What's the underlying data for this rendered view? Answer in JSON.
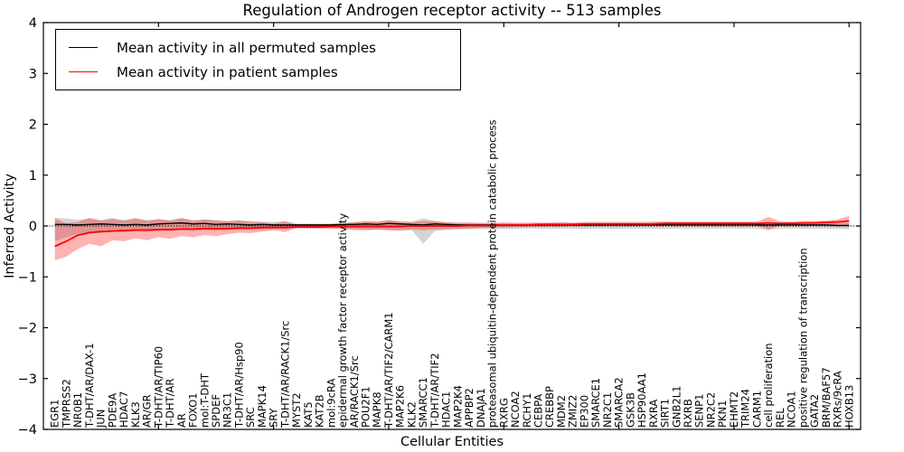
{
  "figure": {
    "title": "Regulation of Androgen receptor activity -- 513 samples",
    "xlabel": "Cellular Entities",
    "ylabel": "Inferred Activity"
  },
  "chart_data": {
    "type": "line",
    "title": "Regulation of Androgen receptor activity -- 513 samples",
    "xlabel": "Cellular Entities",
    "ylabel": "Inferred Activity",
    "ylim": [
      -4,
      4
    ],
    "yticks": [
      4,
      3,
      2,
      1,
      0,
      -1,
      -2,
      -3,
      -4
    ],
    "grid": false,
    "legend_position": "upper left",
    "zero_reference_line": true,
    "categories": [
      "EGR1",
      "TMPRSS2",
      "NR0B1",
      "T-DHT/AR/DAX-1",
      "JUN",
      "PDE9A",
      "HDAC7",
      "KLK3",
      "AR/GR",
      "T-DHT/AR/TIP60",
      "T-DHT/AR",
      "AR",
      "FOXO1",
      "mol:T-DHT",
      "SPDEF",
      "NR3C1",
      "T-DHT/AR/Hsp90",
      "SRC",
      "MAPK14",
      "SRY",
      "T-DHT/AR/RACK1/Src",
      "MYST2",
      "KAT5",
      "KAT2B",
      "mol:9cRA",
      "epidermal growth factor receptor activity",
      "AR/RACK1/Src",
      "POU2F1",
      "MAPK8",
      "T-DHT/AR/TIF2/CARM1",
      "MAP2K6",
      "KLK2",
      "SMARCC1",
      "T-DHT/AR/TIF2",
      "HDAC1",
      "MAP2K4",
      "APPBP2",
      "DNAJA1",
      "proteasomal ubiquitin-dependent protein catabolic process",
      "RXRG",
      "NCOA2",
      "RCHY1",
      "CEBPA",
      "CREBBP",
      "MDM2",
      "ZMIZ2",
      "EP300",
      "SMARCE1",
      "NR2C1",
      "SMARCA2",
      "GSK3B",
      "HSP90AA1",
      "RXRA",
      "SIRT1",
      "GNB2L1",
      "RXRB",
      "SENP1",
      "NR2C2",
      "PKN1",
      "EHMT2",
      "TRIM24",
      "CARM1",
      "cell proliferation",
      "REL",
      "NCOA1",
      "positive regulation of transcription",
      "GATA2",
      "BRM/BAF57",
      "RXRs/9cRA",
      "HOXB13"
    ],
    "series": [
      {
        "key": "permuted",
        "name": "Mean activity in all permuted samples",
        "color": "#000000",
        "band_color": "rgba(120,120,120,0.32)",
        "values": [
          0.03,
          0.03,
          0.02,
          0.03,
          0.04,
          0.03,
          0.02,
          0.03,
          0.02,
          0.04,
          0.05,
          0.06,
          0.04,
          0.05,
          0.03,
          0.04,
          0.03,
          0.02,
          0.03,
          0.02,
          0.02,
          0.02,
          0.02,
          0.02,
          0.02,
          0.03,
          0.03,
          0.04,
          0.03,
          0.05,
          0.04,
          0.03,
          0.02,
          0.04,
          0.03,
          0.02,
          0.02,
          0.02,
          0.02,
          0.02,
          0.02,
          0.02,
          0.02,
          0.02,
          0.02,
          0.02,
          0.02,
          0.02,
          0.02,
          0.02,
          0.02,
          0.02,
          0.02,
          0.02,
          0.02,
          0.02,
          0.02,
          0.02,
          0.02,
          0.02,
          0.02,
          0.02,
          0.02,
          0.02,
          0.02,
          0.02,
          0.02,
          0.02,
          0.01,
          0.01
        ],
        "band_upper": [
          0.16,
          0.15,
          0.12,
          0.15,
          0.12,
          0.16,
          0.12,
          0.14,
          0.12,
          0.13,
          0.12,
          0.15,
          0.12,
          0.13,
          0.12,
          0.1,
          0.11,
          0.1,
          0.09,
          0.08,
          0.08,
          0.05,
          0.05,
          0.05,
          0.05,
          0.06,
          0.08,
          0.1,
          0.09,
          0.12,
          0.1,
          0.09,
          0.15,
          0.1,
          0.08,
          0.07,
          0.06,
          0.06,
          0.06,
          0.06,
          0.06,
          0.05,
          0.05,
          0.06,
          0.05,
          0.05,
          0.06,
          0.05,
          0.05,
          0.06,
          0.05,
          0.05,
          0.05,
          0.06,
          0.05,
          0.05,
          0.05,
          0.05,
          0.05,
          0.05,
          0.05,
          0.05,
          0.06,
          0.05,
          0.05,
          0.05,
          0.05,
          0.05,
          0.06,
          0.06
        ],
        "band_lower": [
          -0.3,
          -0.22,
          -0.15,
          -0.12,
          -0.14,
          -0.1,
          -0.12,
          -0.1,
          -0.12,
          -0.1,
          -0.1,
          -0.08,
          -0.1,
          -0.08,
          -0.09,
          -0.08,
          -0.07,
          -0.08,
          -0.07,
          -0.06,
          -0.06,
          -0.04,
          -0.04,
          -0.04,
          -0.04,
          -0.05,
          -0.06,
          -0.08,
          -0.07,
          -0.08,
          -0.1,
          -0.08,
          -0.35,
          -0.1,
          -0.08,
          -0.07,
          -0.06,
          -0.06,
          -0.06,
          -0.06,
          -0.06,
          -0.05,
          -0.05,
          -0.06,
          -0.05,
          -0.05,
          -0.06,
          -0.05,
          -0.05,
          -0.06,
          -0.05,
          -0.05,
          -0.05,
          -0.06,
          -0.05,
          -0.05,
          -0.05,
          -0.05,
          -0.05,
          -0.05,
          -0.05,
          -0.05,
          -0.08,
          -0.05,
          -0.05,
          -0.05,
          -0.05,
          -0.05,
          -0.06,
          -0.06
        ]
      },
      {
        "key": "patient",
        "name": "Mean activity in patient samples",
        "color": "#ff0000",
        "band_color": "rgba(255,0,0,0.30)",
        "values": [
          -0.4,
          -0.3,
          -0.18,
          -0.13,
          -0.11,
          -0.1,
          -0.09,
          -0.08,
          -0.08,
          -0.07,
          -0.07,
          -0.06,
          -0.06,
          -0.05,
          -0.05,
          -0.05,
          -0.04,
          -0.04,
          -0.03,
          -0.03,
          -0.03,
          -0.02,
          -0.02,
          -0.02,
          -0.01,
          -0.01,
          -0.01,
          -0.01,
          -0.01,
          -0.01,
          -0.01,
          0.0,
          0.0,
          0.0,
          0.0,
          0.0,
          0.01,
          0.01,
          0.01,
          0.02,
          0.02,
          0.02,
          0.03,
          0.03,
          0.03,
          0.03,
          0.04,
          0.04,
          0.04,
          0.04,
          0.04,
          0.04,
          0.04,
          0.05,
          0.05,
          0.05,
          0.05,
          0.05,
          0.05,
          0.05,
          0.05,
          0.05,
          0.06,
          0.05,
          0.05,
          0.06,
          0.06,
          0.07,
          0.08,
          0.1
        ],
        "band_upper": [
          0.15,
          0.05,
          0.08,
          0.16,
          0.1,
          0.14,
          0.1,
          0.16,
          0.1,
          0.14,
          0.1,
          0.16,
          0.1,
          0.13,
          0.1,
          0.09,
          0.11,
          0.08,
          0.07,
          0.05,
          0.1,
          0.03,
          0.04,
          0.03,
          0.04,
          0.05,
          0.07,
          0.09,
          0.08,
          0.11,
          0.08,
          0.07,
          0.1,
          0.09,
          0.07,
          0.06,
          0.07,
          0.06,
          0.06,
          0.07,
          0.06,
          0.07,
          0.07,
          0.07,
          0.08,
          0.07,
          0.08,
          0.08,
          0.08,
          0.08,
          0.08,
          0.08,
          0.09,
          0.09,
          0.09,
          0.09,
          0.09,
          0.09,
          0.09,
          0.09,
          0.09,
          0.09,
          0.18,
          0.09,
          0.09,
          0.1,
          0.1,
          0.11,
          0.13,
          0.2
        ],
        "band_lower": [
          -0.68,
          -0.6,
          -0.45,
          -0.35,
          -0.4,
          -0.28,
          -0.3,
          -0.24,
          -0.28,
          -0.22,
          -0.25,
          -0.2,
          -0.22,
          -0.18,
          -0.2,
          -0.16,
          -0.13,
          -0.14,
          -0.11,
          -0.08,
          -0.12,
          -0.04,
          -0.05,
          -0.05,
          -0.06,
          -0.06,
          -0.08,
          -0.08,
          -0.07,
          -0.08,
          -0.08,
          -0.07,
          -0.08,
          -0.07,
          -0.06,
          -0.05,
          -0.05,
          -0.04,
          -0.03,
          -0.03,
          -0.02,
          -0.02,
          -0.01,
          -0.01,
          -0.01,
          0.0,
          0.0,
          0.0,
          0.01,
          0.01,
          0.01,
          0.01,
          0.0,
          0.01,
          0.01,
          0.01,
          0.01,
          0.01,
          0.01,
          0.01,
          0.01,
          0.01,
          -0.07,
          0.01,
          0.01,
          0.01,
          0.02,
          0.02,
          0.02,
          0.02
        ]
      }
    ]
  }
}
